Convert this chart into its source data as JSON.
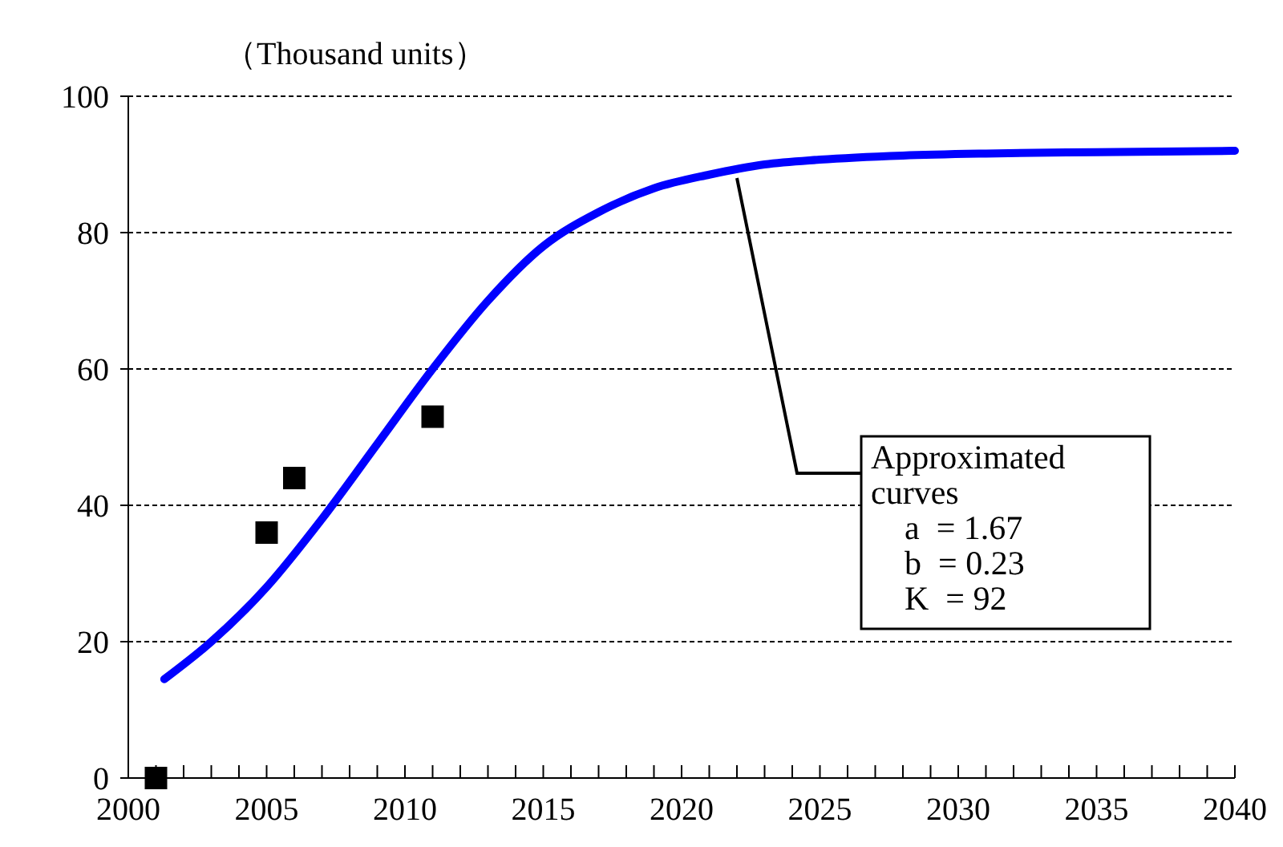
{
  "chart_data": {
    "type": "line",
    "ylabel": "（Thousand units）",
    "xlim": [
      2000,
      2040
    ],
    "ylim": [
      0,
      100
    ],
    "xticks": [
      2000,
      {
        "value": 2001,
        "label": null
      },
      {
        "value": 2002,
        "label": null
      },
      {
        "value": 2003,
        "label": null
      },
      {
        "value": 2004,
        "label": null
      },
      2005,
      {
        "value": 2006,
        "label": null
      },
      {
        "value": 2007,
        "label": null
      },
      {
        "value": 2008,
        "label": null
      },
      {
        "value": 2009,
        "label": null
      },
      2010,
      {
        "value": 2011,
        "label": null
      },
      {
        "value": 2012,
        "label": null
      },
      {
        "value": 2013,
        "label": null
      },
      {
        "value": 2014,
        "label": null
      },
      2015,
      {
        "value": 2016,
        "label": null
      },
      {
        "value": 2017,
        "label": null
      },
      {
        "value": 2018,
        "label": null
      },
      {
        "value": 2019,
        "label": null
      },
      2020,
      {
        "value": 2021,
        "label": null
      },
      {
        "value": 2022,
        "label": null
      },
      {
        "value": 2023,
        "label": null
      },
      {
        "value": 2024,
        "label": null
      },
      2025,
      {
        "value": 2026,
        "label": null
      },
      {
        "value": 2027,
        "label": null
      },
      {
        "value": 2028,
        "label": null
      },
      {
        "value": 2029,
        "label": null
      },
      2030,
      {
        "value": 2031,
        "label": null
      },
      {
        "value": 2032,
        "label": null
      },
      {
        "value": 2033,
        "label": null
      },
      {
        "value": 2034,
        "label": null
      },
      2035,
      {
        "value": 2036,
        "label": null
      },
      {
        "value": 2037,
        "label": null
      },
      {
        "value": 2038,
        "label": null
      },
      {
        "value": 2039,
        "label": null
      },
      2040
    ],
    "yticks": [
      0,
      20,
      40,
      60,
      80,
      100
    ],
    "grid": "y",
    "series": [
      {
        "color": "#0000ff",
        "marker": "none",
        "line_style": "solid",
        "x": [
          2001.3,
          2003,
          2005,
          2007,
          2009,
          2011,
          2013,
          2015,
          2017,
          2019,
          2021,
          2023,
          2025,
          2028,
          2031,
          2035,
          2040
        ],
        "values": [
          14.5,
          20,
          28,
          38,
          49,
          60,
          70,
          78,
          83,
          86.5,
          88.5,
          90,
          90.7,
          91.3,
          91.6,
          91.8,
          92
        ]
      },
      {
        "type": "scatter",
        "color": "#000000",
        "marker": "square",
        "x": [
          2001,
          2005,
          2006,
          2011
        ],
        "values": [
          0,
          36,
          44,
          53
        ]
      }
    ],
    "annotations": [
      {
        "text": "Approximated\ncurves\n    a  = 1.67\n    b  = 0.23\n    K  = 92",
        "x": 2022,
        "y": 88
      }
    ]
  }
}
